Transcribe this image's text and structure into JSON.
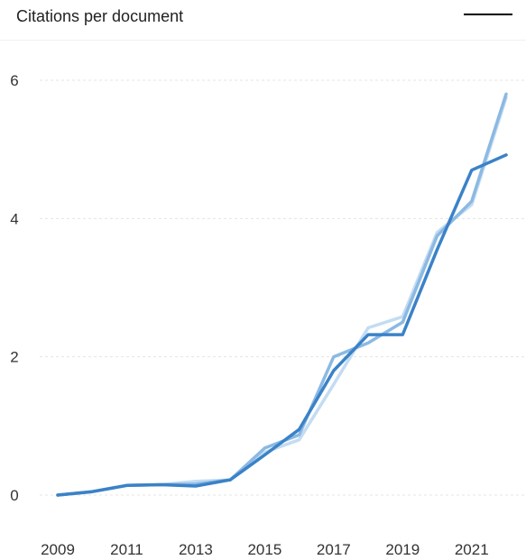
{
  "header": {
    "title": "Citations per document"
  },
  "chart_data": {
    "type": "line",
    "title": "Citations per document",
    "xlabel": "",
    "ylabel": "",
    "x": [
      2009,
      2010,
      2011,
      2012,
      2013,
      2014,
      2015,
      2016,
      2017,
      2018,
      2019,
      2020,
      2021,
      2022
    ],
    "x_ticks": [
      "2009",
      "2011",
      "2013",
      "2015",
      "2017",
      "2019",
      "2021"
    ],
    "y_ticks": [
      "0",
      "2",
      "4",
      "6"
    ],
    "xlim": [
      2009,
      2022
    ],
    "ylim": [
      0,
      6
    ],
    "grid": true,
    "legend": "top-right",
    "series": [
      {
        "color": "#c3dcf2",
        "values": [
          0,
          0.05,
          0.14,
          0.15,
          0.2,
          0.22,
          0.62,
          0.8,
          1.6,
          2.42,
          2.58,
          3.8,
          4.2,
          5.75
        ]
      },
      {
        "color": "#8bb9e3",
        "values": [
          0,
          0.05,
          0.14,
          0.15,
          0.16,
          0.22,
          0.68,
          0.87,
          2.0,
          2.2,
          2.5,
          3.75,
          4.25,
          5.8
        ]
      },
      {
        "color": "#3b82c7",
        "values": [
          0,
          0.05,
          0.14,
          0.15,
          0.13,
          0.22,
          0.58,
          0.95,
          1.8,
          2.32,
          2.32,
          3.55,
          4.7,
          4.92
        ]
      }
    ]
  }
}
